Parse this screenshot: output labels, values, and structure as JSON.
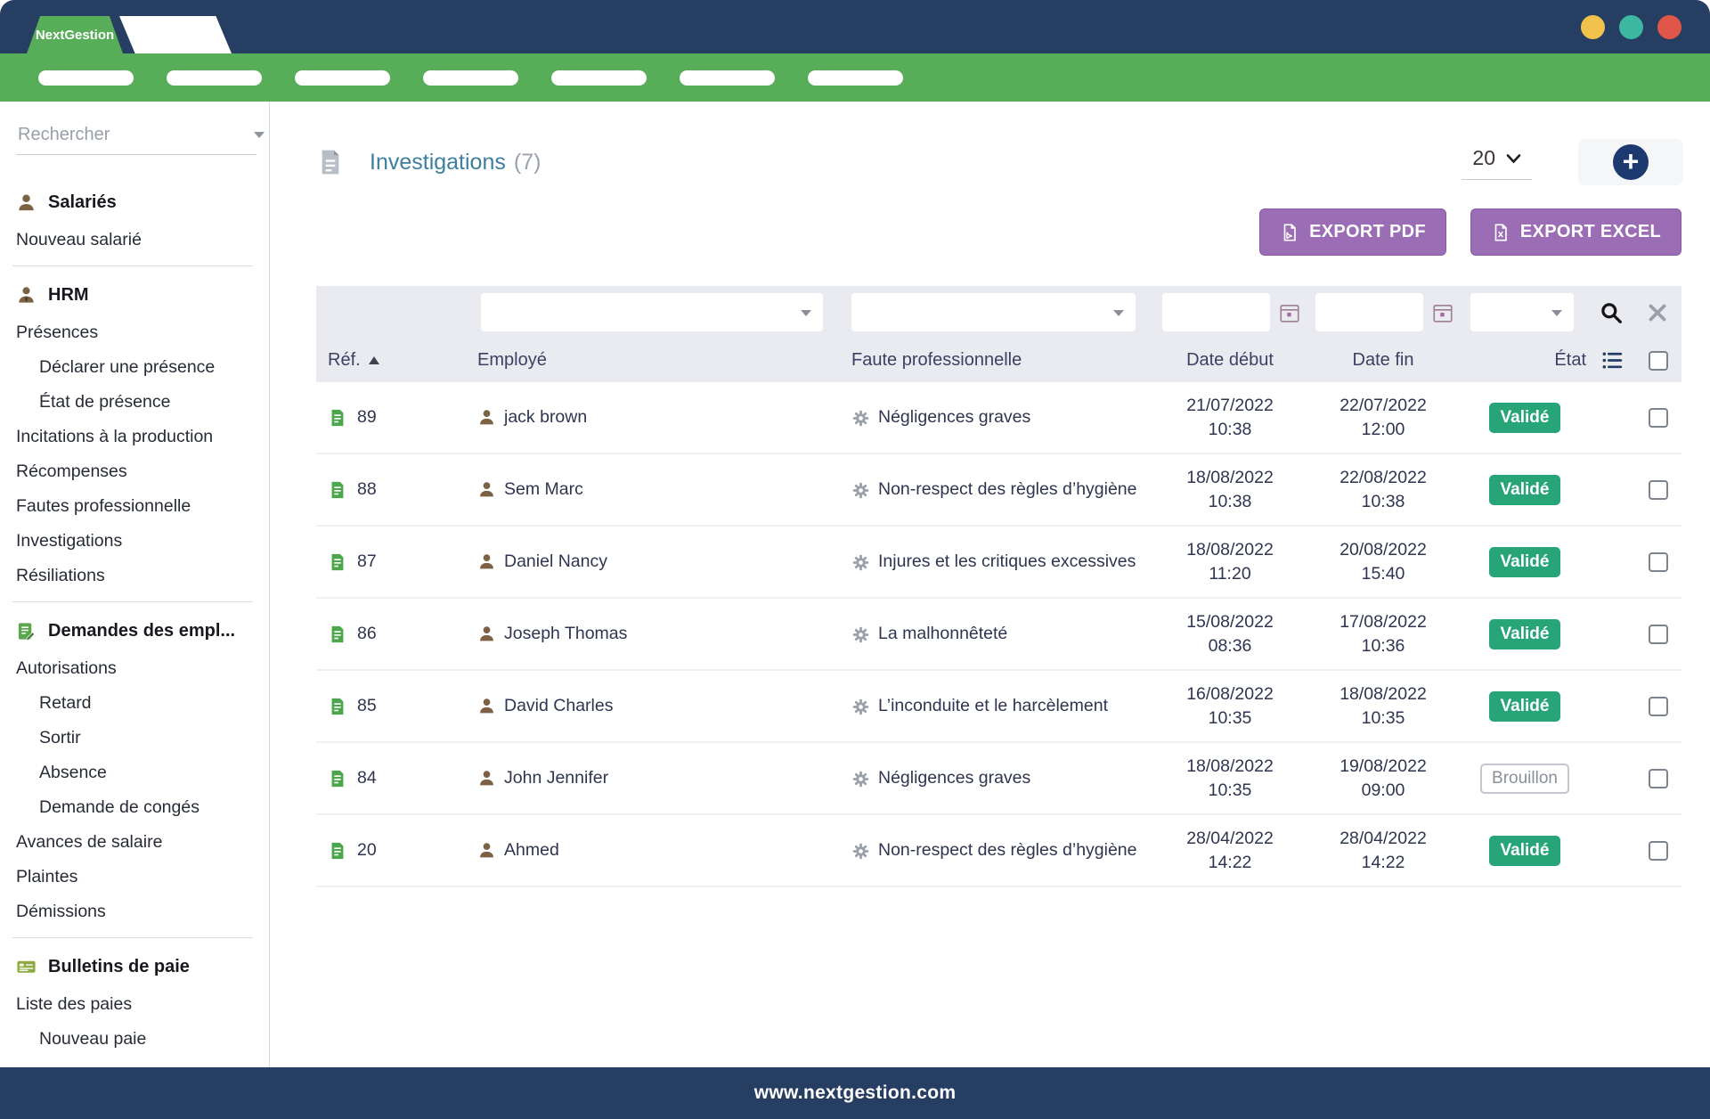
{
  "window": {
    "brand": "NextGestion",
    "footer_url": "www.nextgestion.com",
    "traffic_dots": [
      "#f0c24b",
      "#3cb7a0",
      "#e0564a"
    ],
    "nav_pill_count": 7,
    "colors": {
      "navy": "#273e63",
      "green": "#57ad58",
      "export_purple": "#9a6db4",
      "badge_green": "#27a578",
      "title_teal": "#3d7f9e"
    }
  },
  "sidebar": {
    "search_placeholder": "Rechercher",
    "search_value": "",
    "items": [
      {
        "type": "section",
        "label": "Salariés",
        "icon": "user-icon"
      },
      {
        "type": "item",
        "label": "Nouveau salarié"
      },
      {
        "type": "divider"
      },
      {
        "type": "section",
        "label": "HRM",
        "icon": "user-tie-icon"
      },
      {
        "type": "item",
        "label": "Présences"
      },
      {
        "type": "subitem",
        "label": "Déclarer une présence"
      },
      {
        "type": "subitem",
        "label": "État de présence"
      },
      {
        "type": "item",
        "label": "Incitations à la production"
      },
      {
        "type": "item",
        "label": "Récompenses"
      },
      {
        "type": "item",
        "label": "Fautes professionnelle"
      },
      {
        "type": "item",
        "label": "Investigations"
      },
      {
        "type": "item",
        "label": "Résiliations"
      },
      {
        "type": "divider"
      },
      {
        "type": "section",
        "label": "Demandes des empl...",
        "icon": "request-icon"
      },
      {
        "type": "item",
        "label": "Autorisations"
      },
      {
        "type": "subitem",
        "label": "Retard"
      },
      {
        "type": "subitem",
        "label": "Sortir"
      },
      {
        "type": "subitem",
        "label": "Absence"
      },
      {
        "type": "subitem",
        "label": "Demande de congés"
      },
      {
        "type": "item",
        "label": "Avances de salaire"
      },
      {
        "type": "item",
        "label": "Plaintes"
      },
      {
        "type": "item",
        "label": "Démissions"
      },
      {
        "type": "divider"
      },
      {
        "type": "section",
        "label": "Bulletins de paie",
        "icon": "payslip-icon"
      },
      {
        "type": "item",
        "label": "Liste des paies"
      },
      {
        "type": "subitem",
        "label": "Nouveau paie"
      }
    ]
  },
  "page": {
    "title": "Investigations",
    "count": "(7)",
    "page_size": "20",
    "export_pdf_label": "EXPORT PDF",
    "export_excel_label": "EXPORT EXCEL"
  },
  "table": {
    "sort": {
      "column": "ref",
      "direction": "asc"
    },
    "filters": {
      "employee": "",
      "fault": "",
      "date_start": "",
      "date_end": "",
      "status": ""
    },
    "headers": {
      "ref": "Réf.",
      "employee": "Employé",
      "fault": "Faute professionnelle",
      "date_start": "Date début",
      "date_end": "Date fin",
      "status": "État"
    },
    "rows": [
      {
        "ref": "89",
        "employee": "jack brown",
        "fault": "Négligences graves",
        "start_date": "21/07/2022",
        "start_time": "10:38",
        "end_date": "22/07/2022",
        "end_time": "12:00",
        "status": "Validé",
        "status_kind": "valid"
      },
      {
        "ref": "88",
        "employee": "Sem Marc",
        "fault": "Non-respect des règles d’hygiène",
        "start_date": "18/08/2022",
        "start_time": "10:38",
        "end_date": "22/08/2022",
        "end_time": "10:38",
        "status": "Validé",
        "status_kind": "valid"
      },
      {
        "ref": "87",
        "employee": "Daniel Nancy",
        "fault": "Injures et les critiques excessives",
        "start_date": "18/08/2022",
        "start_time": "11:20",
        "end_date": "20/08/2022",
        "end_time": "15:40",
        "status": "Validé",
        "status_kind": "valid"
      },
      {
        "ref": "86",
        "employee": "Joseph Thomas",
        "fault": "La malhonnêteté",
        "start_date": "15/08/2022",
        "start_time": "08:36",
        "end_date": "17/08/2022",
        "end_time": "10:36",
        "status": "Validé",
        "status_kind": "valid"
      },
      {
        "ref": "85",
        "employee": "David Charles",
        "fault": "L’inconduite et le harcèlement",
        "start_date": "16/08/2022",
        "start_time": "10:35",
        "end_date": "18/08/2022",
        "end_time": "10:35",
        "status": "Validé",
        "status_kind": "valid"
      },
      {
        "ref": "84",
        "employee": "John Jennifer",
        "fault": "Négligences graves",
        "start_date": "18/08/2022",
        "start_time": "10:35",
        "end_date": "19/08/2022",
        "end_time": "09:00",
        "status": "Brouillon",
        "status_kind": "draft"
      },
      {
        "ref": "20",
        "employee": "Ahmed",
        "fault": "Non-respect des règles d’hygiène",
        "start_date": "28/04/2022",
        "start_time": "14:22",
        "end_date": "28/04/2022",
        "end_time": "14:22",
        "status": "Validé",
        "status_kind": "valid"
      }
    ]
  }
}
